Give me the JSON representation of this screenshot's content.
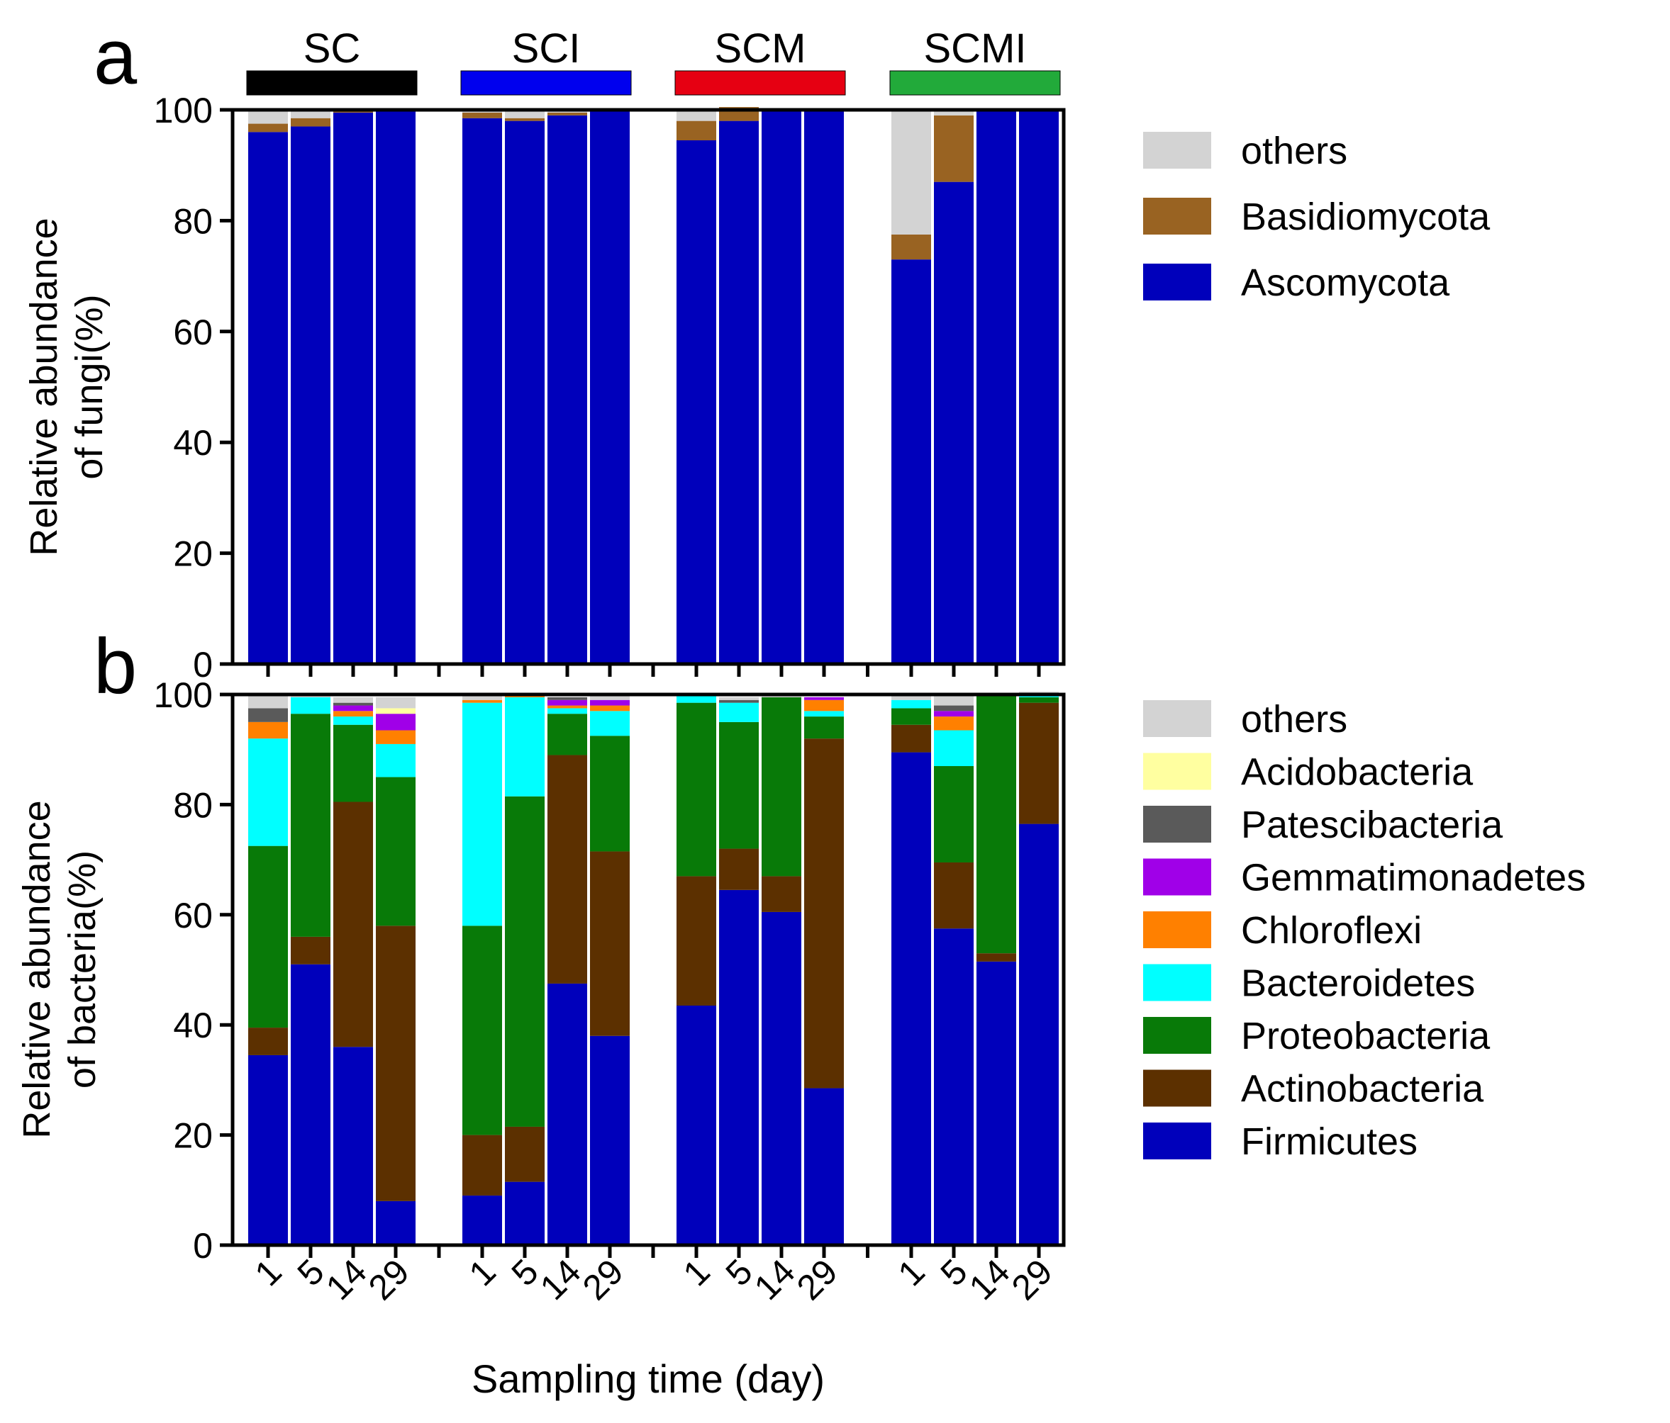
{
  "figure": {
    "panel_a_label": "a",
    "panel_b_label": "b",
    "xlabel": "Sampling time (day)"
  },
  "chart_data": [
    {
      "type": "bar",
      "stacked": true,
      "panel": "a",
      "ylabel_line1": "Relative abundance",
      "ylabel_line2": "of fungi(%)",
      "ylim": [
        0,
        100
      ],
      "yticks": [
        0,
        20,
        40,
        60,
        80,
        100
      ],
      "groups": [
        {
          "name": "SC",
          "color": "#000000"
        },
        {
          "name": "SCI",
          "color": "#0000ee"
        },
        {
          "name": "SCM",
          "color": "#e60012"
        },
        {
          "name": "SCMI",
          "color": "#22aa3a"
        }
      ],
      "categories": [
        "1",
        "5",
        "14",
        "29"
      ],
      "legend": "right",
      "series": [
        {
          "name": "Ascomycota",
          "color": "#0000bb",
          "values": [
            [
              96,
              97,
              99.5,
              100
            ],
            [
              98.5,
              98,
              99,
              100
            ],
            [
              94.5,
              98,
              100,
              100
            ],
            [
              73,
              87,
              100,
              100
            ]
          ]
        },
        {
          "name": "Basidiomycota",
          "color": "#996322",
          "values": [
            [
              1.5,
              1.5,
              0.5,
              0.3
            ],
            [
              1,
              0.5,
              0.5,
              0
            ],
            [
              3.5,
              2.5,
              0,
              0
            ],
            [
              4.5,
              12,
              0,
              0
            ]
          ]
        },
        {
          "name": "others",
          "color": "#d3d3d3",
          "values": [
            [
              2.5,
              1.5,
              0,
              0
            ],
            [
              0.5,
              1.5,
              0.5,
              0
            ],
            [
              2,
              0,
              0,
              0
            ],
            [
              22.5,
              1,
              0,
              0
            ]
          ]
        }
      ]
    },
    {
      "type": "bar",
      "stacked": true,
      "panel": "b",
      "ylabel_line1": "Relative abundance",
      "ylabel_line2": "of bacteria(%)",
      "ylim": [
        0,
        100
      ],
      "yticks": [
        0,
        20,
        40,
        60,
        80,
        100
      ],
      "groups": [
        {
          "name": "SC"
        },
        {
          "name": "SCI"
        },
        {
          "name": "SCM"
        },
        {
          "name": "SCMI"
        }
      ],
      "categories": [
        "1",
        "5",
        "14",
        "29"
      ],
      "legend": "right",
      "series": [
        {
          "name": "Firmicutes",
          "color": "#0000bb",
          "values": [
            [
              34.5,
              51,
              36,
              8
            ],
            [
              9,
              11.5,
              47.5,
              38
            ],
            [
              43.5,
              64.5,
              60.5,
              28.5
            ],
            [
              89.5,
              57.5,
              51.5,
              76.5
            ]
          ]
        },
        {
          "name": "Actinobacteria",
          "color": "#5c3000",
          "values": [
            [
              5,
              5,
              44.5,
              50
            ],
            [
              11,
              10,
              41.5,
              33.5
            ],
            [
              23.5,
              7.5,
              6.5,
              63.5
            ],
            [
              5,
              12,
              1.5,
              22
            ]
          ]
        },
        {
          "name": "Proteobacteria",
          "color": "#087a08",
          "values": [
            [
              33,
              40.5,
              14,
              27
            ],
            [
              38,
              60,
              7.5,
              21
            ],
            [
              31.5,
              23,
              32.5,
              4
            ],
            [
              3,
              17.5,
              47,
              1
            ]
          ]
        },
        {
          "name": "Bacteroidetes",
          "color": "#00ffff",
          "values": [
            [
              19.5,
              3,
              1.5,
              6
            ],
            [
              40.5,
              18,
              1,
              4.5
            ],
            [
              1.5,
              3.5,
              0,
              1
            ],
            [
              1.5,
              6.5,
              0,
              0.5
            ]
          ]
        },
        {
          "name": "Chloroflexi",
          "color": "#ff8000",
          "values": [
            [
              3,
              0,
              1,
              2.5
            ],
            [
              0.5,
              0.5,
              0.5,
              1
            ],
            [
              0,
              0,
              0,
              2
            ],
            [
              0,
              2.5,
              0,
              0
            ]
          ]
        },
        {
          "name": "Gemmatimonadetes",
          "color": "#a000e8",
          "values": [
            [
              0,
              0,
              1,
              3
            ],
            [
              0,
              0,
              1,
              1
            ],
            [
              0,
              0,
              0,
              0.5
            ],
            [
              0,
              1,
              0,
              0
            ]
          ]
        },
        {
          "name": "Patescibacteria",
          "color": "#5a5a5a",
          "values": [
            [
              2.5,
              0,
              0.5,
              0
            ],
            [
              0,
              0,
              0.5,
              0
            ],
            [
              0,
              0.5,
              0,
              0
            ],
            [
              0,
              1,
              0,
              0
            ]
          ]
        },
        {
          "name": "Acidobacteria",
          "color": "#ffffa0",
          "values": [
            [
              0,
              0,
              0,
              1
            ],
            [
              0,
              0,
              0,
              0
            ],
            [
              0,
              0,
              0,
              0
            ],
            [
              0,
              0,
              0,
              0
            ]
          ]
        },
        {
          "name": "others",
          "color": "#d3d3d3",
          "values": [
            [
              2.5,
              0.5,
              1,
              2
            ],
            [
              1,
              0,
              0,
              1
            ],
            [
              0,
              0.5,
              0.5,
              0
            ],
            [
              1,
              2,
              0,
              0.5
            ]
          ]
        }
      ]
    }
  ]
}
